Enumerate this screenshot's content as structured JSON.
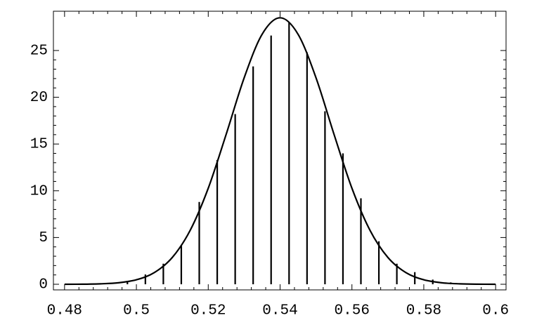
{
  "chart_data": {
    "type": "line",
    "xlim": [
      0.4769,
      0.6029
    ],
    "ylim": [
      -0.6,
      29.2
    ],
    "xticks": [
      0.48,
      0.5,
      0.52,
      0.54,
      0.56,
      0.58,
      0.6
    ],
    "yticks": [
      0,
      5,
      10,
      15,
      20,
      25
    ],
    "series": [
      {
        "type": "line",
        "color": "#000000",
        "x": [
          0.48,
          0.485,
          0.49,
          0.495,
          0.5,
          0.505,
          0.51,
          0.515,
          0.52,
          0.525,
          0.53,
          0.535,
          0.54,
          0.545,
          0.55,
          0.555,
          0.56,
          0.565,
          0.57,
          0.575,
          0.58,
          0.585,
          0.59,
          0.595,
          0.6
        ],
        "values": [
          0,
          0.01,
          0.05,
          0.16,
          0.48,
          1.25,
          2.87,
          5.79,
          10.27,
          16.05,
          22.08,
          26.74,
          28.5,
          26.74,
          22.08,
          16.05,
          10.27,
          5.79,
          2.87,
          1.25,
          0.48,
          0.16,
          0.05,
          0.01,
          0
        ]
      },
      {
        "type": "stem",
        "color": "#000000",
        "x": [
          0.4975,
          0.5025,
          0.5075,
          0.5125,
          0.5175,
          0.5225,
          0.5275,
          0.5325,
          0.5375,
          0.5425,
          0.5475,
          0.5525,
          0.5575,
          0.5625,
          0.5675,
          0.5725,
          0.5775,
          0.5825,
          0.5875
        ],
        "values": [
          0.35,
          1.05,
          2.2,
          4.1,
          8.8,
          13.3,
          18.2,
          23.3,
          26.6,
          28.0,
          24.8,
          18.5,
          14.0,
          9.2,
          4.6,
          2.2,
          1.3,
          0.5,
          0.2
        ]
      }
    ]
  }
}
